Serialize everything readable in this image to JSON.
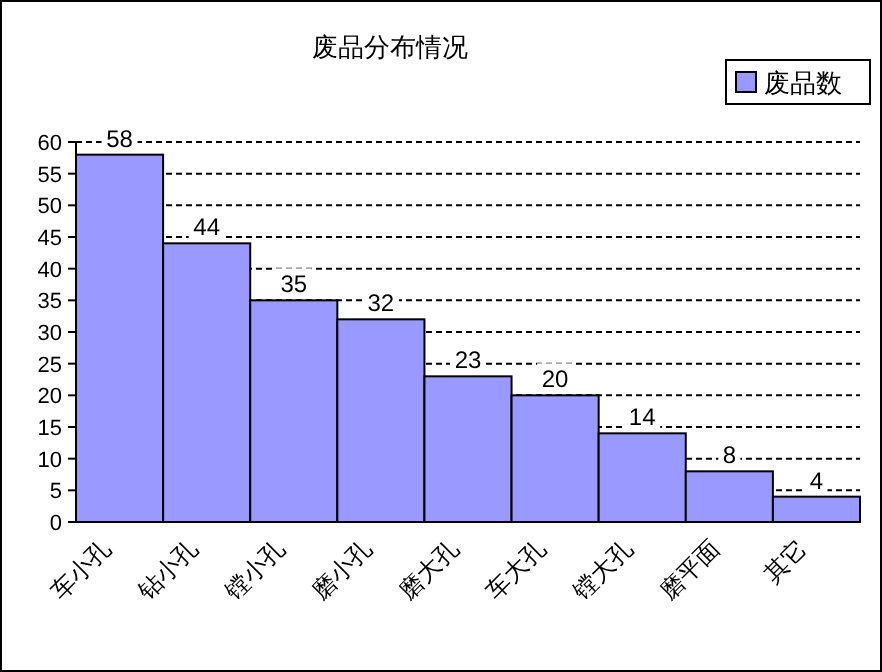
{
  "chart_data": {
    "type": "bar",
    "title": "废品分布情况",
    "categories": [
      "车小孔",
      "钻小孔",
      "镗小孔",
      "磨小孔",
      "磨大孔",
      "车大孔",
      "镗大孔",
      "磨平面",
      "其它"
    ],
    "series": [
      {
        "name": "废品数",
        "color": "#9999ff",
        "values": [
          58,
          44,
          35,
          32,
          23,
          20,
          14,
          8,
          4
        ]
      }
    ],
    "ylim": [
      0,
      60
    ],
    "yticks": [
      0,
      5,
      10,
      15,
      20,
      25,
      30,
      35,
      40,
      45,
      50,
      55,
      60
    ],
    "grid": "y",
    "legend": "top right",
    "data_labels": true
  }
}
